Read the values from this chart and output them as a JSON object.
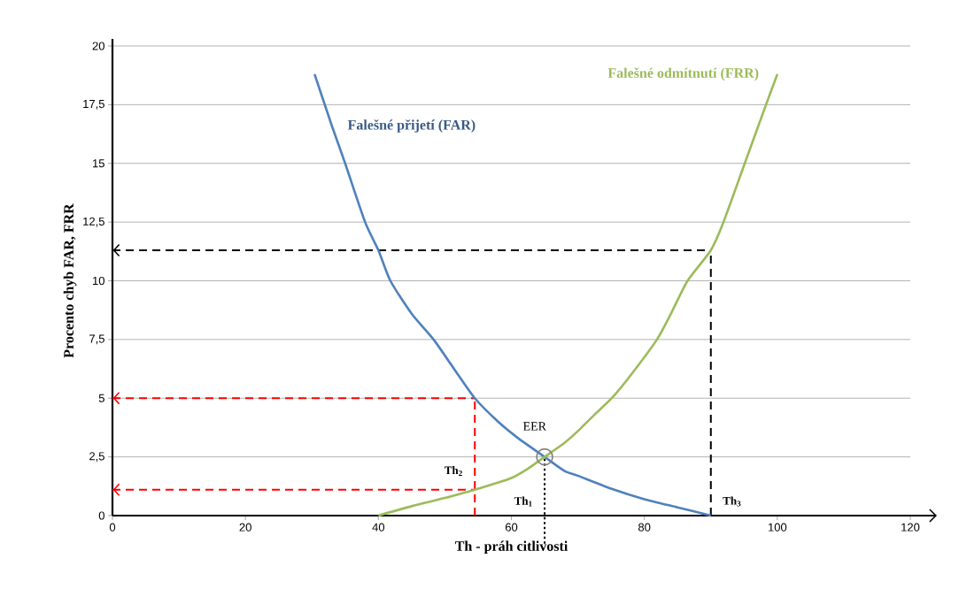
{
  "chart_data": {
    "type": "line",
    "xlabel": "Th - práh citlivosti",
    "ylabel": "Procento chyb FAR, FRR",
    "series": [
      {
        "name": "Falešné přijetí (FAR)",
        "color": "#4f81bd",
        "x": [
          30.4,
          33,
          35,
          38,
          40,
          41.8,
          45,
          48.3,
          51.5,
          54.5,
          58,
          61,
          65,
          68,
          70,
          75,
          80,
          85,
          90
        ],
        "values": [
          18.8,
          16.6,
          15,
          12.5,
          11.3,
          10,
          8.6,
          7.5,
          6.2,
          5,
          4,
          3.3,
          2.5,
          1.9,
          1.7,
          1.15,
          0.7,
          0.35,
          0
        ]
      },
      {
        "name": "Falešné odmítnutí (FRR)",
        "color": "#9bbb59",
        "x": [
          40,
          45,
          50,
          54.5,
          60,
          62.5,
          65,
          68,
          70,
          72.5,
          75.1,
          78,
          81.9,
          84,
          86.5,
          90,
          91.9,
          95.1,
          98.3,
          100
        ],
        "values": [
          0,
          0.4,
          0.75,
          1.1,
          1.6,
          2,
          2.5,
          3.1,
          3.6,
          4.3,
          5,
          6,
          7.5,
          8.6,
          10,
          11.3,
          12.5,
          15,
          17.5,
          18.8
        ]
      }
    ],
    "xlim": [
      0,
      120
    ],
    "ylim": [
      0,
      20
    ],
    "xticks": [
      0,
      20,
      40,
      60,
      80,
      100,
      120
    ],
    "yticks": [
      0,
      {
        "value": 2.5,
        "label": "2,5"
      },
      5,
      {
        "value": 7.5,
        "label": "7,5"
      },
      10,
      {
        "value": 12.5,
        "label": "12,5"
      },
      15,
      {
        "value": 17.5,
        "label": "17,5"
      },
      20
    ],
    "grid": "y",
    "legend": false,
    "marker": "none",
    "line_style": "solid",
    "annotations": [
      {
        "text": "EER",
        "x": 65,
        "y": 2.5
      }
    ],
    "ref_lines": [
      {
        "axis": "y",
        "value": 11.3,
        "color": "#000000",
        "line_style": "dashed"
      },
      {
        "axis": "y",
        "value": 5,
        "color": "#ff0000",
        "line_style": "dashed"
      },
      {
        "axis": "y",
        "value": 1.1,
        "color": "#ff0000",
        "line_style": "dashed"
      },
      {
        "axis": "x",
        "value": 54.5,
        "label": "Th$_{2}$",
        "color": "#ff0000",
        "line_style": "dashed"
      },
      {
        "axis": "x",
        "value": 65,
        "label": "Th$_{1}$",
        "color": "#000000",
        "line_style": "dotted"
      },
      {
        "axis": "x",
        "value": 90,
        "label": "Th$_{3}$",
        "color": "#000000",
        "line_style": "dashed"
      }
    ]
  }
}
